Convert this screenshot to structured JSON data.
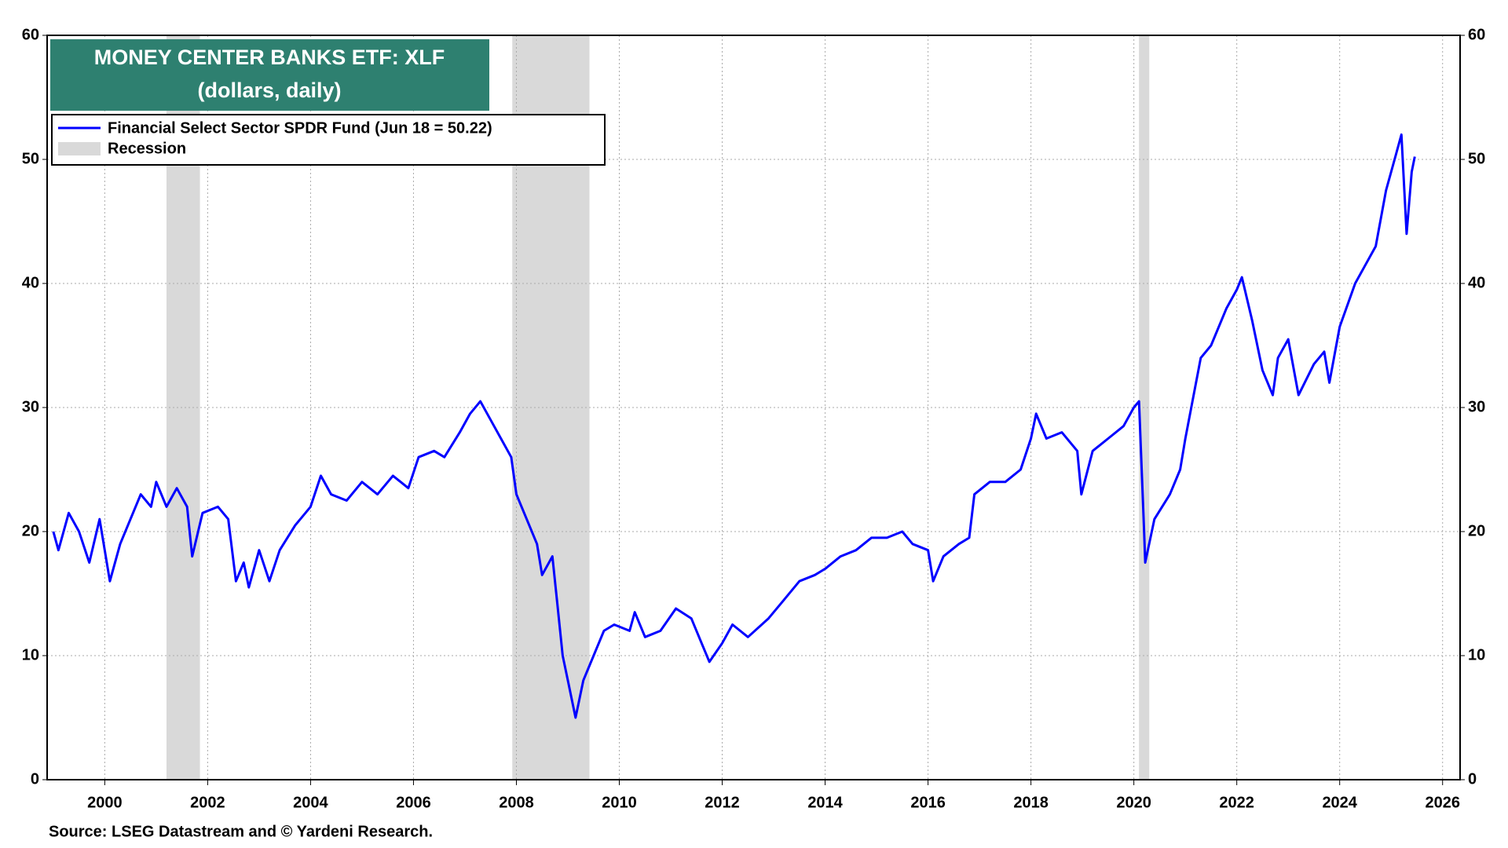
{
  "chart_data": {
    "type": "line",
    "title": "MONEY CENTER BANKS ETF: XLF",
    "subtitle": "(dollars, daily)",
    "source": "Source: LSEG Datastream and © Yardeni Research.",
    "x": [
      1999.0,
      1999.1,
      1999.3,
      1999.5,
      1999.7,
      1999.9,
      2000.1,
      2000.3,
      2000.5,
      2000.7,
      2000.9,
      2001.0,
      2001.2,
      2001.4,
      2001.6,
      2001.7,
      2001.9,
      2002.2,
      2002.4,
      2002.55,
      2002.7,
      2002.8,
      2003.0,
      2003.2,
      2003.4,
      2003.7,
      2004.0,
      2004.2,
      2004.4,
      2004.7,
      2005.0,
      2005.3,
      2005.6,
      2005.9,
      2006.1,
      2006.4,
      2006.6,
      2006.9,
      2007.1,
      2007.3,
      2007.5,
      2007.7,
      2007.9,
      2008.0,
      2008.2,
      2008.4,
      2008.5,
      2008.7,
      2008.8,
      2008.9,
      2009.0,
      2009.15,
      2009.3,
      2009.5,
      2009.7,
      2009.9,
      2010.2,
      2010.3,
      2010.5,
      2010.8,
      2011.1,
      2011.4,
      2011.6,
      2011.75,
      2012.0,
      2012.2,
      2012.5,
      2012.9,
      2013.2,
      2013.5,
      2013.8,
      2014.0,
      2014.3,
      2014.6,
      2014.9,
      2015.2,
      2015.5,
      2015.7,
      2016.0,
      2016.1,
      2016.3,
      2016.6,
      2016.8,
      2016.9,
      2017.2,
      2017.5,
      2017.8,
      2018.0,
      2018.1,
      2018.3,
      2018.6,
      2018.9,
      2018.98,
      2019.2,
      2019.5,
      2019.8,
      2020.0,
      2020.1,
      2020.2,
      2020.22,
      2020.4,
      2020.7,
      2020.9,
      2021.0,
      2021.3,
      2021.5,
      2021.8,
      2022.0,
      2022.1,
      2022.3,
      2022.5,
      2022.7,
      2022.8,
      2023.0,
      2023.2,
      2023.5,
      2023.7,
      2023.8,
      2024.0,
      2024.3,
      2024.5,
      2024.7,
      2024.9,
      2025.1,
      2025.2,
      2025.25,
      2025.3,
      2025.4,
      2025.46
    ],
    "series": [
      {
        "name": "Financial Select Sector SPDR Fund (Jun 18 = 50.22)",
        "color": "#0000ff",
        "values": [
          20,
          18.5,
          21.5,
          20,
          17.5,
          21,
          16,
          19,
          21,
          23,
          22,
          24,
          22,
          23.5,
          22,
          18,
          21.5,
          22,
          21,
          16,
          17.5,
          15.5,
          18.5,
          16,
          18.5,
          20.5,
          22,
          24.5,
          23,
          22.5,
          24,
          23,
          24.5,
          23.5,
          26,
          26.5,
          26,
          28,
          29.5,
          30.5,
          29,
          27.5,
          26,
          23,
          21,
          19,
          16.5,
          18,
          14,
          10,
          8,
          5,
          8,
          10,
          12,
          12.5,
          12,
          13.5,
          11.5,
          12,
          13.8,
          13,
          11,
          9.5,
          11,
          12.5,
          11.5,
          13,
          14.5,
          16,
          16.5,
          17,
          18,
          18.5,
          19.5,
          19.5,
          20,
          19,
          18.5,
          16,
          18,
          19,
          19.5,
          23,
          24,
          24,
          25,
          27.5,
          29.5,
          27.5,
          28,
          26.5,
          23,
          26.5,
          27.5,
          28.5,
          30,
          30.5,
          20,
          17.5,
          21,
          23,
          25,
          27.5,
          34,
          35,
          38,
          39.5,
          40.5,
          37,
          33,
          31,
          34,
          35.5,
          31,
          33.5,
          34.5,
          32,
          36.5,
          40,
          41.5,
          43,
          47.5,
          50.5,
          52,
          48,
          44,
          49,
          50.22
        ]
      }
    ],
    "recession": {
      "name": "Recession",
      "color": "#d9d9d9",
      "periods": [
        [
          2001.2,
          2001.85
        ],
        [
          2007.92,
          2009.42
        ],
        [
          2020.1,
          2020.3
        ]
      ]
    },
    "xlim": [
      1998.88,
      2026.34
    ],
    "xticks": [
      2000,
      2002,
      2004,
      2006,
      2008,
      2010,
      2012,
      2014,
      2016,
      2018,
      2020,
      2022,
      2024,
      2026
    ],
    "ylim": [
      0,
      60
    ],
    "yticks": [
      0,
      10,
      20,
      30,
      40,
      50,
      60
    ],
    "y2lim": [
      0,
      60
    ],
    "y2ticks": [
      0,
      10,
      20,
      30,
      40,
      50,
      60
    ],
    "grid": true
  }
}
